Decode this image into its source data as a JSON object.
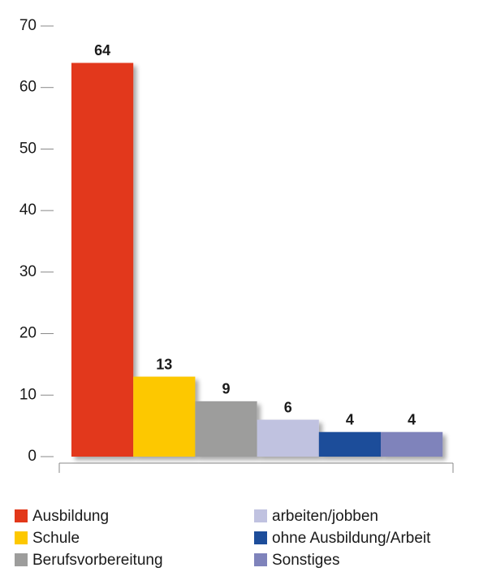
{
  "chart_data": {
    "type": "bar",
    "categories": [
      "Ausbildung",
      "Schule",
      "Berufsvorbereitung",
      "arbeiten/jobben",
      "ohne Ausbildung/Arbeit",
      "Sonstiges"
    ],
    "values": [
      64,
      13,
      9,
      6,
      4,
      4
    ],
    "colors": [
      "#e2381a",
      "#fdc800",
      "#9d9d9c",
      "#c0c2e0",
      "#1d4d9a",
      "#7f83bb"
    ],
    "ylim": [
      0,
      70
    ],
    "yticks": [
      0,
      10,
      20,
      30,
      40,
      50,
      60,
      70
    ],
    "grid": false,
    "legend": "bottom"
  }
}
